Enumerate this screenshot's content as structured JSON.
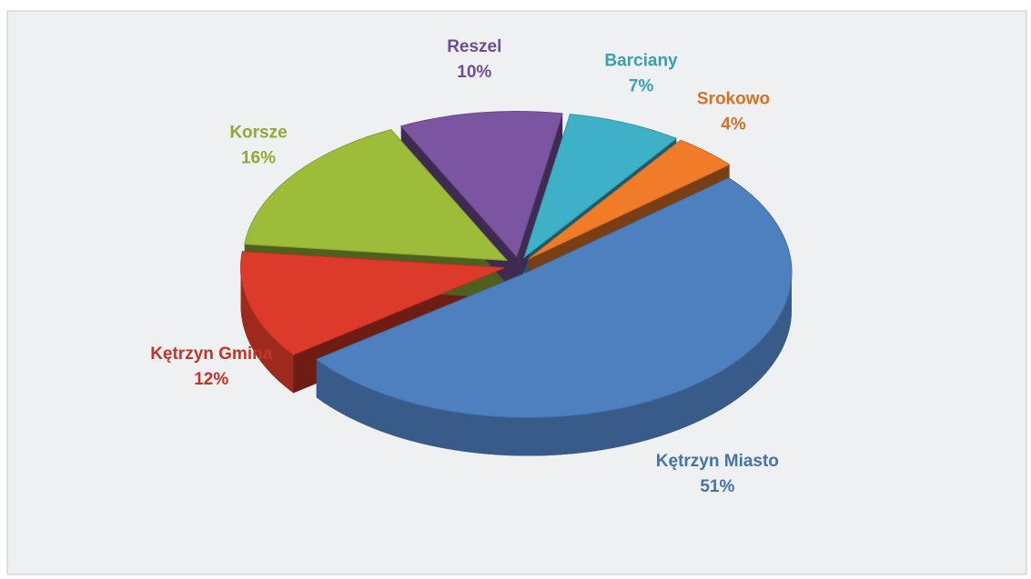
{
  "chart_data": {
    "type": "pie",
    "categories": [
      "Barciany",
      "Srokowo",
      "Kętrzyn Miasto",
      "Kętrzyn Gmina",
      "Korsze",
      "Reszel"
    ],
    "values": [
      7,
      4,
      51,
      12,
      16,
      10
    ],
    "value_labels": [
      "7%",
      "4%",
      "51%",
      "12%",
      "16%",
      "10%"
    ],
    "colors": [
      "#3eb1c8",
      "#f07c2a",
      "#4e7fbe",
      "#dc3a2a",
      "#9dbd3a",
      "#7b55a1"
    ]
  }
}
